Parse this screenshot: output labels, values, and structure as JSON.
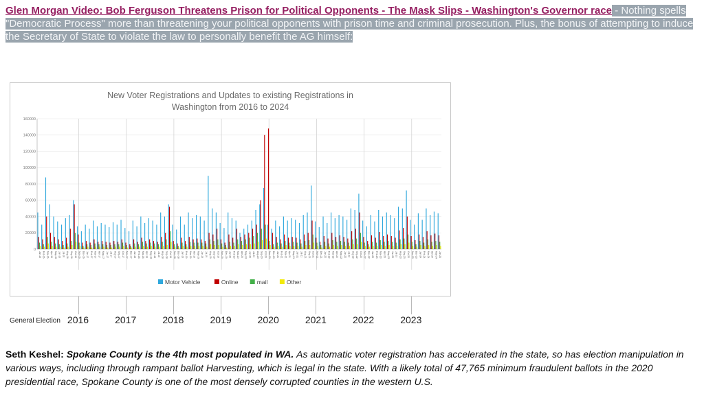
{
  "colors": {
    "headline_color": "#962062",
    "highlight_bg": "#9aa5ae",
    "highlight_text": "#f2f4f6"
  },
  "header": {
    "headline": "Glen Morgan Video: Bob Ferguson Threatens Prison for Political Opponents - The Mask Slips - Washington's Governor race",
    "description": " - Nothing spells \"Democratic Process\" more than threatening your political opponents with prison time and criminal prosecution. Plus, the bonus of attempting to induce the Secretary of State to violate the law to personally benefit the AG himself:"
  },
  "axis": {
    "general_election_label": "General Election",
    "years": [
      "2016",
      "2017",
      "2018",
      "2019",
      "2020",
      "2021",
      "2022",
      "2023"
    ]
  },
  "footer": {
    "author_label": "Seth Keshel:",
    "lead": "Spokane County is the 4th most populated in WA.",
    "body": "As automatic voter registration has accelerated in the state, so has election manipulation in various ways, including through rampant ballot Harvesting, which is legal in the state. With a likely total of 47,765 minimum fraudulent ballots in the 2020 presidential race, Spokane County is one of the most densely corrupted counties in the western U.S."
  },
  "chart_data": {
    "type": "bar",
    "title": "New Voter Registrations and  Updates to existing Registrations in Washington from 2016 to 2024",
    "xlabel": "",
    "ylabel": "",
    "ylim": [
      0,
      160000
    ],
    "ytick_step": 20000,
    "grid": true,
    "legend_position": "bottom",
    "x": [
      "Jan-16",
      "Feb-16",
      "Mar-16",
      "Apr-16",
      "May-16",
      "Jun-16",
      "Jul-16",
      "Aug-16",
      "Sep-16",
      "Oct-16",
      "Nov-16",
      "Dec-16",
      "Jan-17",
      "Feb-17",
      "Mar-17",
      "Apr-17",
      "May-17",
      "Jun-17",
      "Jul-17",
      "Aug-17",
      "Sep-17",
      "Oct-17",
      "Nov-17",
      "Dec-17",
      "Jan-18",
      "Feb-18",
      "Mar-18",
      "Apr-18",
      "May-18",
      "Jun-18",
      "Jul-18",
      "Aug-18",
      "Sep-18",
      "Oct-18",
      "Nov-18",
      "Dec-18",
      "Jan-19",
      "Feb-19",
      "Mar-19",
      "Apr-19",
      "May-19",
      "Jun-19",
      "Jul-19",
      "Aug-19",
      "Sep-19",
      "Oct-19",
      "Nov-19",
      "Dec-19",
      "Jan-20",
      "Feb-20",
      "Mar-20",
      "Apr-20",
      "May-20",
      "Jun-20",
      "Jul-20",
      "Aug-20",
      "Sep-20",
      "Oct-20",
      "Nov-20",
      "Dec-20",
      "Jan-21",
      "Feb-21",
      "Mar-21",
      "Apr-21",
      "May-21",
      "Jun-21",
      "Jul-21",
      "Aug-21",
      "Sep-21",
      "Oct-21",
      "Nov-21",
      "Dec-21",
      "Jan-22",
      "Feb-22",
      "Mar-22",
      "Apr-22",
      "May-22",
      "Jun-22",
      "Jul-22",
      "Aug-22",
      "Sep-22",
      "Oct-22",
      "Nov-22",
      "Dec-22",
      "Jan-23",
      "Feb-23",
      "Mar-23",
      "Apr-23",
      "May-23",
      "Jun-23",
      "Jul-23",
      "Aug-23",
      "Sep-23",
      "Oct-23",
      "Nov-23",
      "Dec-23",
      "Jan-24",
      "Feb-24",
      "Mar-24",
      "Apr-24",
      "May-24",
      "Jun-24"
    ],
    "series": [
      {
        "name": "Motor Vehicle",
        "color": "#2fa8dd",
        "values": [
          45000,
          30000,
          88000,
          55000,
          40000,
          34000,
          30000,
          38000,
          42000,
          60000,
          28000,
          22000,
          30000,
          25000,
          35000,
          28000,
          32000,
          30000,
          27000,
          33000,
          30000,
          36000,
          26000,
          22000,
          35000,
          28000,
          40000,
          32000,
          38000,
          35000,
          30000,
          45000,
          40000,
          55000,
          30000,
          24000,
          40000,
          30000,
          45000,
          38000,
          42000,
          40000,
          35000,
          90000,
          50000,
          45000,
          32000,
          26000,
          45000,
          38000,
          35000,
          20000,
          25000,
          30000,
          35000,
          48000,
          55000,
          75000,
          30000,
          25000,
          35000,
          28000,
          40000,
          35000,
          38000,
          36000,
          32000,
          42000,
          45000,
          78000,
          34000,
          27000,
          40000,
          32000,
          45000,
          38000,
          42000,
          40000,
          36000,
          50000,
          48000,
          68000,
          35000,
          28000,
          42000,
          34000,
          48000,
          40000,
          45000,
          42000,
          38000,
          52000,
          50000,
          72000,
          36000,
          30000,
          44000,
          36000,
          50000,
          42000,
          46000,
          44000
        ]
      },
      {
        "name": "Online",
        "color": "#c00000",
        "values": [
          15000,
          12000,
          40000,
          20000,
          15000,
          12000,
          10000,
          14000,
          25000,
          55000,
          18000,
          8000,
          10000,
          8000,
          12000,
          9000,
          10000,
          9000,
          8000,
          10000,
          9000,
          12000,
          8000,
          6000,
          12000,
          9000,
          14000,
          10000,
          12000,
          10000,
          9000,
          15000,
          20000,
          52000,
          10000,
          7000,
          14000,
          10000,
          15000,
          12000,
          13000,
          12000,
          10000,
          20000,
          18000,
          25000,
          12000,
          8000,
          18000,
          14000,
          25000,
          15000,
          18000,
          20000,
          25000,
          30000,
          60000,
          140000,
          148000,
          20000,
          15000,
          12000,
          18000,
          14000,
          15000,
          14000,
          12000,
          18000,
          20000,
          35000,
          14000,
          9000,
          16000,
          13000,
          20000,
          15000,
          17000,
          15000,
          13000,
          22000,
          25000,
          45000,
          15000,
          10000,
          17000,
          14000,
          21000,
          16000,
          18000,
          16000,
          14000,
          23000,
          26000,
          40000,
          16000,
          11000,
          18000,
          15000,
          22000,
          17000,
          19000,
          17000
        ]
      },
      {
        "name": "mail",
        "color": "#43b049",
        "values": [
          8000,
          6000,
          15000,
          9000,
          7000,
          6000,
          5000,
          7000,
          10000,
          20000,
          8000,
          4000,
          6000,
          5000,
          7000,
          6000,
          6000,
          5000,
          5000,
          6000,
          6000,
          8000,
          5000,
          4000,
          7000,
          6000,
          9000,
          7000,
          8000,
          7000,
          6000,
          9000,
          12000,
          22000,
          6000,
          4000,
          8000,
          6000,
          9000,
          8000,
          8000,
          8000,
          7000,
          12000,
          10000,
          12000,
          7000,
          5000,
          9000,
          8000,
          12000,
          10000,
          12000,
          14000,
          16000,
          20000,
          25000,
          30000,
          10000,
          6000,
          8000,
          7000,
          10000,
          8000,
          9000,
          8000,
          7000,
          10000,
          11000,
          18000,
          8000,
          5000,
          9000,
          7000,
          11000,
          9000,
          10000,
          9000,
          8000,
          12000,
          13000,
          20000,
          8000,
          6000,
          9000,
          8000,
          11000,
          9000,
          10000,
          9000,
          8000,
          12000,
          13000,
          18000,
          9000,
          6000,
          10000,
          8000,
          12000,
          9000,
          10000,
          9000
        ]
      },
      {
        "name": "Other",
        "color": "#f3ea0b",
        "values": [
          4000,
          3000,
          7000,
          4000,
          3000,
          3000,
          2000,
          3000,
          5000,
          9000,
          4000,
          2000,
          3000,
          2000,
          3000,
          3000,
          3000,
          2000,
          2000,
          3000,
          3000,
          4000,
          2000,
          2000,
          3000,
          3000,
          4000,
          3000,
          4000,
          3000,
          3000,
          4000,
          5000,
          9000,
          3000,
          2000,
          4000,
          3000,
          4000,
          4000,
          4000,
          4000,
          3000,
          6000,
          5000,
          5000,
          3000,
          2000,
          4000,
          4000,
          6000,
          5000,
          6000,
          6000,
          7000,
          9000,
          11000,
          13000,
          5000,
          3000,
          4000,
          3000,
          5000,
          4000,
          4000,
          4000,
          3000,
          5000,
          5000,
          8000,
          4000,
          2000,
          4000,
          3000,
          5000,
          4000,
          5000,
          4000,
          4000,
          6000,
          6000,
          9000,
          4000,
          3000,
          4000,
          4000,
          5000,
          4000,
          5000,
          4000,
          4000,
          6000,
          6000,
          8000,
          4000,
          3000,
          5000,
          4000,
          5000,
          4000,
          5000,
          4000
        ]
      }
    ]
  }
}
